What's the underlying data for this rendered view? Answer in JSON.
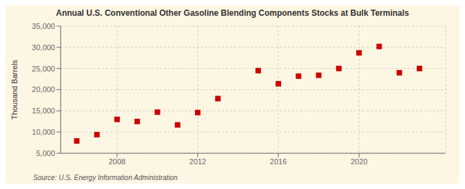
{
  "chart_data": {
    "type": "scatter",
    "title": "Annual U.S. Conventional Other Gasoline Blending Components Stocks at Bulk Terminals",
    "y_label": "Thousand Barrels",
    "annotations": [
      "Source: U.S. Energy Information Administration"
    ],
    "x": [
      2006,
      2007,
      2008,
      2009,
      2010,
      2011,
      2012,
      2013,
      2015,
      2016,
      2017,
      2018,
      2019,
      2020,
      2021,
      2022,
      2023
    ],
    "values": [
      7900,
      9400,
      13000,
      12500,
      14700,
      11700,
      14600,
      17900,
      24500,
      21400,
      23200,
      23400,
      25000,
      28700,
      30200,
      24000,
      25000
    ],
    "color": "#cc0000",
    "marker": "square",
    "xlim": [
      2005.2,
      2024.3
    ],
    "xticks": [
      2008,
      2012,
      2016,
      2020
    ],
    "ylim": [
      5000,
      35000
    ],
    "yticks": [
      {
        "value": 5000,
        "label": "5,000"
      },
      {
        "value": 10000,
        "label": "10,000"
      },
      {
        "value": 15000,
        "label": "15,000"
      },
      {
        "value": 20000,
        "label": "20,000"
      },
      {
        "value": 25000,
        "label": "25,000"
      },
      {
        "value": 30000,
        "label": "30,000"
      },
      {
        "value": 35000,
        "label": "35,000"
      }
    ],
    "grid": true
  }
}
